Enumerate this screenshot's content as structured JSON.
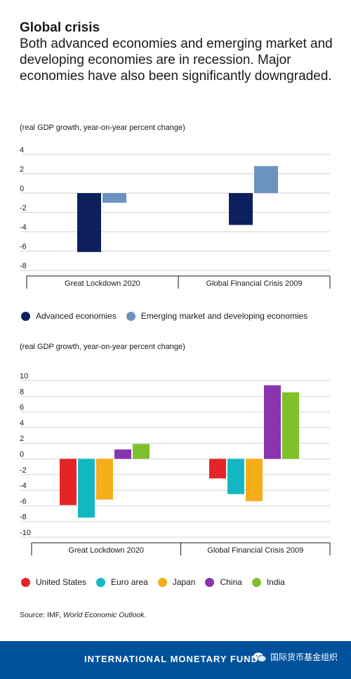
{
  "header": {
    "title": "Global crisis",
    "subtitle": "Both advanced economies and emerging market and developing economies are in recession. Major economies have also been significantly downgraded."
  },
  "chart_data": [
    {
      "type": "bar",
      "note": "(real GDP growth, year-on-year percent change)",
      "categories": [
        "Great Lockdown 2020",
        "Global Financial Crisis 2009"
      ],
      "series": [
        {
          "name": "Advanced economies",
          "color": "#0d1f5c",
          "values": [
            -6.1,
            -3.3
          ]
        },
        {
          "name": "Emerging market and developing economies",
          "color": "#6c93c0",
          "values": [
            -1.0,
            2.8
          ]
        }
      ],
      "ylim": [
        -8,
        4
      ],
      "yticks": [
        4,
        2,
        0,
        -2,
        -4,
        -6,
        -8
      ],
      "legend_position": "bottom"
    },
    {
      "type": "bar",
      "note": "(real GDP growth, year-on-year percent change)",
      "categories": [
        "Great Lockdown 2020",
        "Global Financial Crisis 2009"
      ],
      "series": [
        {
          "name": "United States",
          "color": "#e42528",
          "values": [
            -5.9,
            -2.5
          ]
        },
        {
          "name": "Euro area",
          "color": "#14b8c2",
          "values": [
            -7.5,
            -4.5
          ]
        },
        {
          "name": "Japan",
          "color": "#f6ad1a",
          "values": [
            -5.2,
            -5.4
          ]
        },
        {
          "name": "China",
          "color": "#8a34b0",
          "values": [
            1.2,
            9.4
          ]
        },
        {
          "name": "India",
          "color": "#7ec12a",
          "values": [
            1.9,
            8.5
          ]
        }
      ],
      "ylim": [
        -10,
        10
      ],
      "yticks": [
        10,
        8,
        6,
        4,
        2,
        0,
        -2,
        -4,
        -6,
        -8,
        -10
      ],
      "legend_position": "bottom"
    }
  ],
  "source": {
    "prefix": "Source: IMF, ",
    "publication": "World Economic Outlook",
    "suffix": "."
  },
  "footer": {
    "brand": "INTERNATIONAL MONETARY FUND",
    "wechat_label": "国际货币基金组织",
    "color": "#00519b"
  }
}
